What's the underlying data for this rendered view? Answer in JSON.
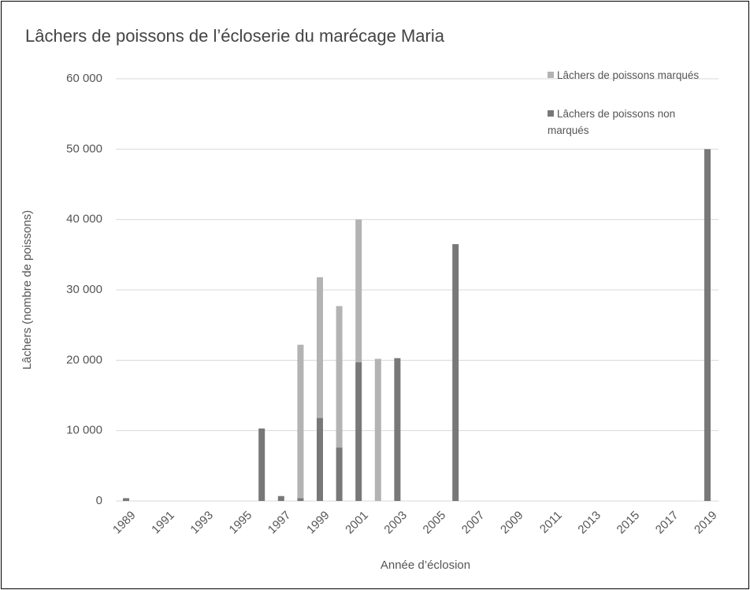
{
  "chart_data": {
    "type": "stacked_bar",
    "title": "Lâchers de poissons de l’écloserie du marécage Maria",
    "x_label": "Année d’éclosion",
    "y_label": "Lâchers (nombre de poissons)",
    "categories": [
      "1989",
      null,
      "1991",
      null,
      "1993",
      null,
      "1995",
      null,
      "1997",
      null,
      "1999",
      null,
      "2001",
      null,
      "2003",
      null,
      "2005",
      null,
      "2007",
      null,
      "2009",
      null,
      "2011",
      null,
      "2013",
      null,
      "2015",
      null,
      "2017",
      null,
      "2019"
    ],
    "series": [
      {
        "name": "Lâchers de poissons marqués",
        "color": "#b3b3b3",
        "values": [
          0,
          0,
          0,
          0,
          0,
          0,
          0,
          0,
          0,
          21800,
          20000,
          20100,
          20300,
          20200,
          0,
          0,
          0,
          0,
          0,
          0,
          0,
          0,
          0,
          0,
          0,
          0,
          0,
          0,
          0,
          0,
          0
        ]
      },
      {
        "name": "Lâchers de poissons non marqués",
        "color": "#787878",
        "values": [
          400,
          0,
          0,
          0,
          0,
          0,
          0,
          10300,
          700,
          400,
          11800,
          7600,
          19700,
          0,
          20300,
          0,
          0,
          36500,
          0,
          0,
          0,
          0,
          0,
          0,
          0,
          0,
          0,
          0,
          0,
          0,
          50000
        ]
      }
    ],
    "stack_order": [
      1,
      0
    ],
    "ylim": [
      0,
      60000
    ],
    "yticks": [
      0,
      {
        "value": 10000,
        "label": "10 000"
      },
      {
        "value": 20000,
        "label": "20 000"
      },
      {
        "value": 30000,
        "label": "30 000"
      },
      {
        "value": 40000,
        "label": "40 000"
      },
      {
        "value": 50000,
        "label": "50 000"
      },
      {
        "value": 60000,
        "label": "60 000"
      }
    ],
    "grid": true,
    "legend": "top-right"
  }
}
